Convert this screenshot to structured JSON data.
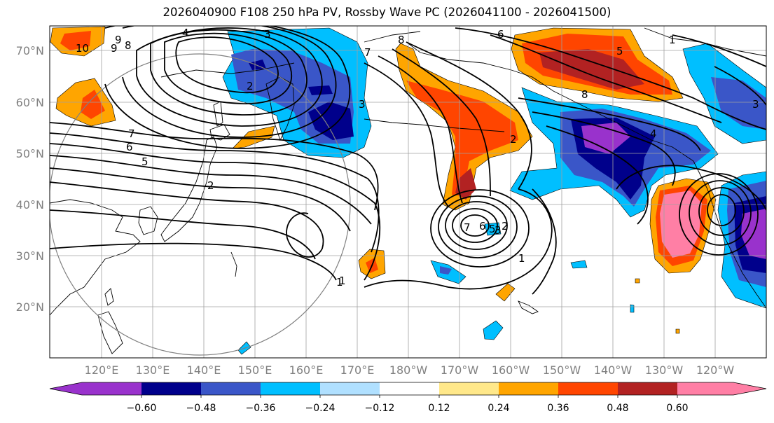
{
  "title": "2026040900 F108 250 hPa PV, Rossby Wave PC (2026041100 - 2026041500)",
  "lat_labels": [
    "70°N",
    "60°N",
    "50°N",
    "40°N",
    "30°N",
    "20°N"
  ],
  "lon_labels": [
    "120°E",
    "130°E",
    "140°E",
    "150°E",
    "160°E",
    "170°E",
    "180°W",
    "170°W",
    "160°W",
    "150°W",
    "140°W",
    "130°W",
    "120°W"
  ],
  "colorbar": {
    "ticks": [
      "−0.60",
      "−0.48",
      "−0.36",
      "−0.24",
      "−0.12",
      "0.12",
      "0.24",
      "0.36",
      "0.48",
      "0.60"
    ],
    "colors": [
      "#9932cc",
      "#00008b",
      "#3a56c8",
      "#00bfff",
      "#b0e0ff",
      "#ffffff",
      "#ffe88a",
      "#ffa500",
      "#ff4500",
      "#b22222",
      "#ff7fa5"
    ]
  },
  "contour_labels": [
    "10",
    "9",
    "8",
    "7",
    "6",
    "5",
    "4",
    "3",
    "2",
    "1",
    "7",
    "6",
    "5",
    "3",
    "2",
    "1",
    "8",
    "7",
    "6",
    "5",
    "4",
    "3",
    "2",
    "1",
    "9",
    "8",
    "3",
    "2",
    "1"
  ],
  "colors": {
    "frame": "#000000",
    "grid": "#a0a0a0",
    "circle": "#808080",
    "label": "#808080"
  }
}
